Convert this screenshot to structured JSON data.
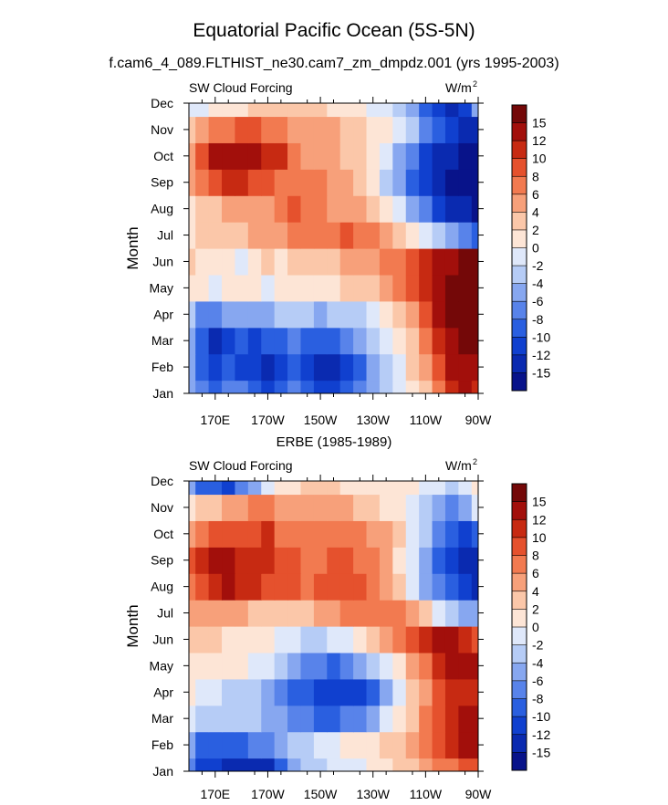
{
  "figure": {
    "title": "Equatorial Pacific Ocean (5S-5N)",
    "subtitle": "f.cam6_4_089.FLTHIST_ne30.cam7_zm_dmpdz.001 (yrs 1995-2003)"
  },
  "chart_data": [
    {
      "type": "heatmap",
      "panel_title": "",
      "left_label": "SW Cloud Forcing",
      "units": "W/m",
      "units_sup": "2",
      "ylabel": "Month",
      "xlabel": "",
      "x_ticks": [
        "170E",
        "170W",
        "150W",
        "130W",
        "110W",
        "90W"
      ],
      "y_ticks": [
        "Jan",
        "Feb",
        "Mar",
        "Apr",
        "May",
        "Jun",
        "Jul",
        "Aug",
        "Sep",
        "Oct",
        "Nov",
        "Dec"
      ],
      "x_range": [
        "160E",
        "90W"
      ],
      "x_centers": [
        "160E",
        "165E",
        "170E",
        "175E",
        "180",
        "175W",
        "170W",
        "165W",
        "160W",
        "155W",
        "150W",
        "145W",
        "140W",
        "135W",
        "130W",
        "125W",
        "120W",
        "115W",
        "110W",
        "105W",
        "100W",
        "95W",
        "90W"
      ],
      "colorbar": {
        "labels": [
          "15",
          "12",
          "10",
          "8",
          "6",
          "4",
          "2",
          "0",
          "-2",
          "-4",
          "-6",
          "-8",
          "-10",
          "-12",
          "-15"
        ],
        "levels": [
          -15,
          -12,
          -10,
          -8,
          -6,
          -4,
          -2,
          0,
          2,
          4,
          6,
          8,
          10,
          12,
          15
        ],
        "colors": [
          "#08138a",
          "#0a2ab0",
          "#1040cf",
          "#2a5fe0",
          "#5883ea",
          "#87a7f0",
          "#b6ccf6",
          "#dfe8fa",
          "#fde5d6",
          "#fbc7a9",
          "#f7a07a",
          "#f27a50",
          "#e5512d",
          "#c72a12",
          "#a20f0b",
          "#740808"
        ]
      },
      "values": [
        [
          -5,
          -8,
          -9,
          -7,
          -8,
          -10,
          -11,
          -9,
          -8,
          -10,
          -12,
          -11,
          -10,
          -8,
          -6,
          -4,
          -2,
          0,
          3,
          6,
          10,
          13,
          11
        ],
        [
          -6,
          -10,
          -12,
          -10,
          -11,
          -12,
          -13,
          -11,
          -10,
          -12,
          -14,
          -13,
          -11,
          -9,
          -6,
          -3,
          -1,
          2,
          5,
          8,
          12,
          14,
          12
        ],
        [
          -5,
          -9,
          -13,
          -11,
          -10,
          -11,
          -10,
          -9,
          -8,
          -9,
          -10,
          -9,
          -8,
          -6,
          -3,
          -1,
          1,
          3,
          6,
          10,
          14,
          16,
          16
        ],
        [
          -4,
          -7,
          -8,
          -6,
          -5,
          -6,
          -5,
          -4,
          -4,
          -4,
          -5,
          -4,
          -4,
          -3,
          -1,
          0,
          2,
          4,
          8,
          12,
          16,
          17,
          17
        ],
        [
          1,
          0,
          -1,
          0,
          1,
          0,
          -1,
          0,
          1,
          0,
          1,
          1,
          2,
          2,
          3,
          4,
          6,
          8,
          11,
          14,
          16,
          17,
          17
        ],
        [
          2,
          1,
          1,
          0,
          -1,
          1,
          2,
          0,
          2,
          2,
          3,
          3,
          4,
          4,
          5,
          6,
          7,
          9,
          10,
          12,
          14,
          15,
          15
        ],
        [
          1,
          2,
          2,
          3,
          3,
          4,
          4,
          5,
          6,
          6,
          7,
          7,
          8,
          7,
          6,
          5,
          3,
          1,
          -1,
          -3,
          -5,
          -7,
          -9
        ],
        [
          0,
          2,
          3,
          4,
          4,
          5,
          5,
          6,
          8,
          7,
          6,
          5,
          5,
          4,
          2,
          0,
          -2,
          -5,
          -8,
          -11,
          -13,
          -15,
          -16
        ],
        [
          4,
          7,
          9,
          10,
          10,
          9,
          8,
          7,
          7,
          6,
          6,
          5,
          4,
          2,
          0,
          -3,
          -6,
          -9,
          -12,
          -14,
          -16,
          -17,
          -17
        ],
        [
          5,
          9,
          12,
          13,
          13,
          12,
          11,
          10,
          6,
          5,
          4,
          4,
          3,
          2,
          0,
          -2,
          -5,
          -8,
          -11,
          -13,
          -15,
          -17,
          -17
        ],
        [
          3,
          5,
          6,
          7,
          8,
          8,
          7,
          6,
          5,
          5,
          4,
          4,
          3,
          2,
          1,
          0,
          -2,
          -4,
          -7,
          -10,
          -12,
          -14,
          -13
        ],
        [
          -2,
          -1,
          0,
          1,
          1,
          2,
          2,
          2,
          2,
          2,
          2,
          1,
          1,
          0,
          -1,
          -2,
          -4,
          -6,
          -9,
          -12,
          -13,
          -11,
          -6
        ]
      ]
    },
    {
      "type": "heatmap",
      "panel_title": "ERBE (1985-1989)",
      "left_label": "SW Cloud Forcing",
      "units": "W/m",
      "units_sup": "2",
      "ylabel": "Month",
      "xlabel": "",
      "x_ticks": [
        "170E",
        "170W",
        "150W",
        "130W",
        "110W",
        "90W"
      ],
      "y_ticks": [
        "Jan",
        "Feb",
        "Mar",
        "Apr",
        "May",
        "Jun",
        "Jul",
        "Aug",
        "Sep",
        "Oct",
        "Nov",
        "Dec"
      ],
      "x_range": [
        "160E",
        "90W"
      ],
      "x_centers": [
        "160E",
        "165E",
        "170E",
        "175E",
        "180",
        "175W",
        "170W",
        "165W",
        "160W",
        "155W",
        "150W",
        "145W",
        "140W",
        "135W",
        "130W",
        "125W",
        "120W",
        "115W",
        "110W",
        "105W",
        "100W",
        "95W",
        "90W"
      ],
      "colorbar": {
        "labels": [
          "15",
          "12",
          "10",
          "8",
          "6",
          "4",
          "2",
          "0",
          "-2",
          "-4",
          "-6",
          "-8",
          "-10",
          "-12",
          "-15"
        ],
        "levels": [
          -15,
          -12,
          -10,
          -8,
          -6,
          -4,
          -2,
          0,
          2,
          4,
          6,
          8,
          10,
          12,
          15
        ],
        "colors": [
          "#08138a",
          "#0a2ab0",
          "#1040cf",
          "#2a5fe0",
          "#5883ea",
          "#87a7f0",
          "#b6ccf6",
          "#dfe8fa",
          "#fde5d6",
          "#fbc7a9",
          "#f7a07a",
          "#f27a50",
          "#e5512d",
          "#c72a12",
          "#a20f0b",
          "#740808"
        ]
      },
      "values": [
        [
          -8,
          -11,
          -12,
          -13,
          -14,
          -15,
          -13,
          -9,
          -6,
          -4,
          -3,
          -2,
          -2,
          -1,
          0,
          1,
          2,
          3,
          5,
          6,
          7,
          9,
          8
        ],
        [
          -6,
          -9,
          -10,
          -10,
          -9,
          -8,
          -7,
          -6,
          -4,
          -3,
          -2,
          -1,
          0,
          0,
          1,
          2,
          3,
          4,
          6,
          8,
          10,
          12,
          12
        ],
        [
          -2,
          -3,
          -4,
          -4,
          -3,
          -4,
          -5,
          -6,
          -7,
          -8,
          -9,
          -9,
          -8,
          -7,
          -5,
          -2,
          1,
          3,
          6,
          9,
          11,
          13,
          14
        ],
        [
          0,
          -1,
          -2,
          -3,
          -3,
          -4,
          -5,
          -7,
          -9,
          -10,
          -11,
          -12,
          -12,
          -11,
          -9,
          -5,
          -1,
          2,
          5,
          8,
          10,
          11,
          11
        ],
        [
          1,
          1,
          0,
          0,
          0,
          -1,
          -2,
          -3,
          -5,
          -7,
          -8,
          -9,
          -8,
          -6,
          -4,
          -1,
          1,
          4,
          7,
          10,
          12,
          13,
          12
        ],
        [
          2,
          2,
          2,
          1,
          1,
          1,
          0,
          -1,
          -2,
          -3,
          -3,
          -2,
          -1,
          0,
          2,
          4,
          6,
          8,
          10,
          12,
          12,
          11,
          9
        ],
        [
          4,
          5,
          5,
          4,
          4,
          3,
          2,
          2,
          2,
          3,
          4,
          5,
          6,
          6,
          6,
          7,
          6,
          4,
          2,
          -1,
          -3,
          -5,
          -6
        ],
        [
          7,
          9,
          11,
          12,
          11,
          10,
          9,
          8,
          8,
          7,
          8,
          9,
          9,
          8,
          7,
          5,
          2,
          -1,
          -5,
          -8,
          -10,
          -12,
          -13
        ],
        [
          8,
          11,
          12,
          12,
          11,
          10,
          11,
          9,
          8,
          7,
          7,
          8,
          8,
          7,
          6,
          4,
          1,
          -2,
          -6,
          -9,
          -11,
          -13,
          -14
        ],
        [
          5,
          7,
          8,
          8,
          9,
          9,
          10,
          7,
          6,
          6,
          6,
          6,
          6,
          6,
          5,
          4,
          2,
          -1,
          -4,
          -7,
          -10,
          -11,
          -10
        ],
        [
          1,
          2,
          3,
          4,
          5,
          6,
          6,
          5,
          5,
          5,
          5,
          4,
          4,
          3,
          2,
          1,
          0,
          -1,
          -3,
          -5,
          -7,
          -5,
          -2
        ],
        [
          -6,
          -9,
          -10,
          -11,
          -8,
          -5,
          -2,
          0,
          1,
          2,
          2,
          2,
          1,
          1,
          1,
          1,
          0,
          0,
          -1,
          -2,
          -3,
          -1,
          0
        ]
      ]
    }
  ]
}
